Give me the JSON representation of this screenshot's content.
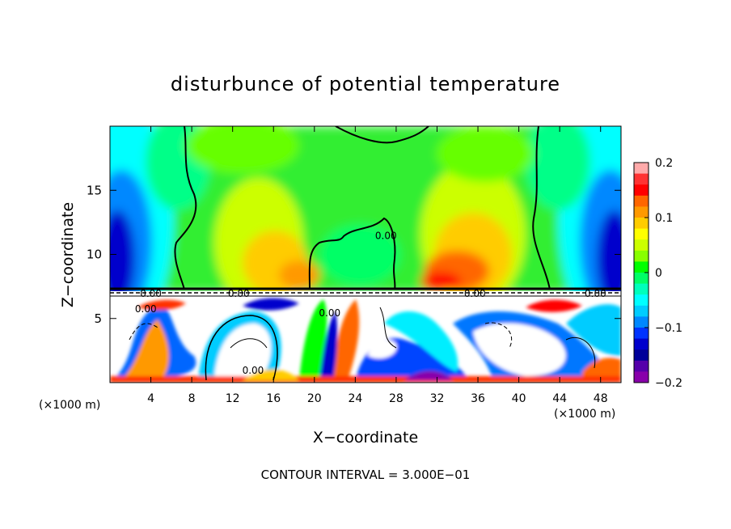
{
  "chart_data": {
    "type": "heatmap",
    "title": "disturbunce of potential temperature",
    "xlabel": "X−coordinate",
    "ylabel": "Z−coordinate",
    "x_unit_left": "(×1000 m)",
    "x_unit_right": "(×1000 m)",
    "footer": "CONTOUR INTERVAL = 3.000E−01",
    "xlim": [
      0,
      50
    ],
    "ylim": [
      0,
      20
    ],
    "x_ticks": [
      4,
      8,
      12,
      16,
      20,
      24,
      28,
      32,
      36,
      40,
      44,
      48
    ],
    "y_ticks": [
      5,
      10,
      15
    ],
    "contour_labels": [
      {
        "text": "0.00",
        "x": 4.0,
        "z": 7.0
      },
      {
        "text": "0.00",
        "x": 3.5,
        "z": 5.8
      },
      {
        "text": "0.00",
        "x": 12.6,
        "z": 7.0
      },
      {
        "text": "0.00",
        "x": 27.0,
        "z": 11.5
      },
      {
        "text": "0.00",
        "x": 21.5,
        "z": 5.5
      },
      {
        "text": "0.00",
        "x": 35.7,
        "z": 7.0
      },
      {
        "text": "0.00",
        "x": 47.5,
        "z": 7.0
      },
      {
        "text": "0.00",
        "x": 14.0,
        "z": 1.0
      }
    ],
    "colorbar": {
      "min": -0.2,
      "max": 0.2,
      "ticks": [
        0.2,
        0.1,
        0,
        -0.1,
        -0.2
      ],
      "tick_labels": [
        "0.2",
        "0.1",
        "0",
        "−0.1",
        "−0.2"
      ],
      "colors": [
        "#ffaaaa",
        "#ff3333",
        "#ff0000",
        "#ff6600",
        "#ff9900",
        "#ffcc00",
        "#ffff00",
        "#ccff00",
        "#88ff00",
        "#00ff00",
        "#00ff66",
        "#00ffbb",
        "#00ffff",
        "#00ccff",
        "#0088ff",
        "#0033ff",
        "#0000cc",
        "#000099",
        "#5500aa",
        "#8800aa"
      ]
    }
  }
}
